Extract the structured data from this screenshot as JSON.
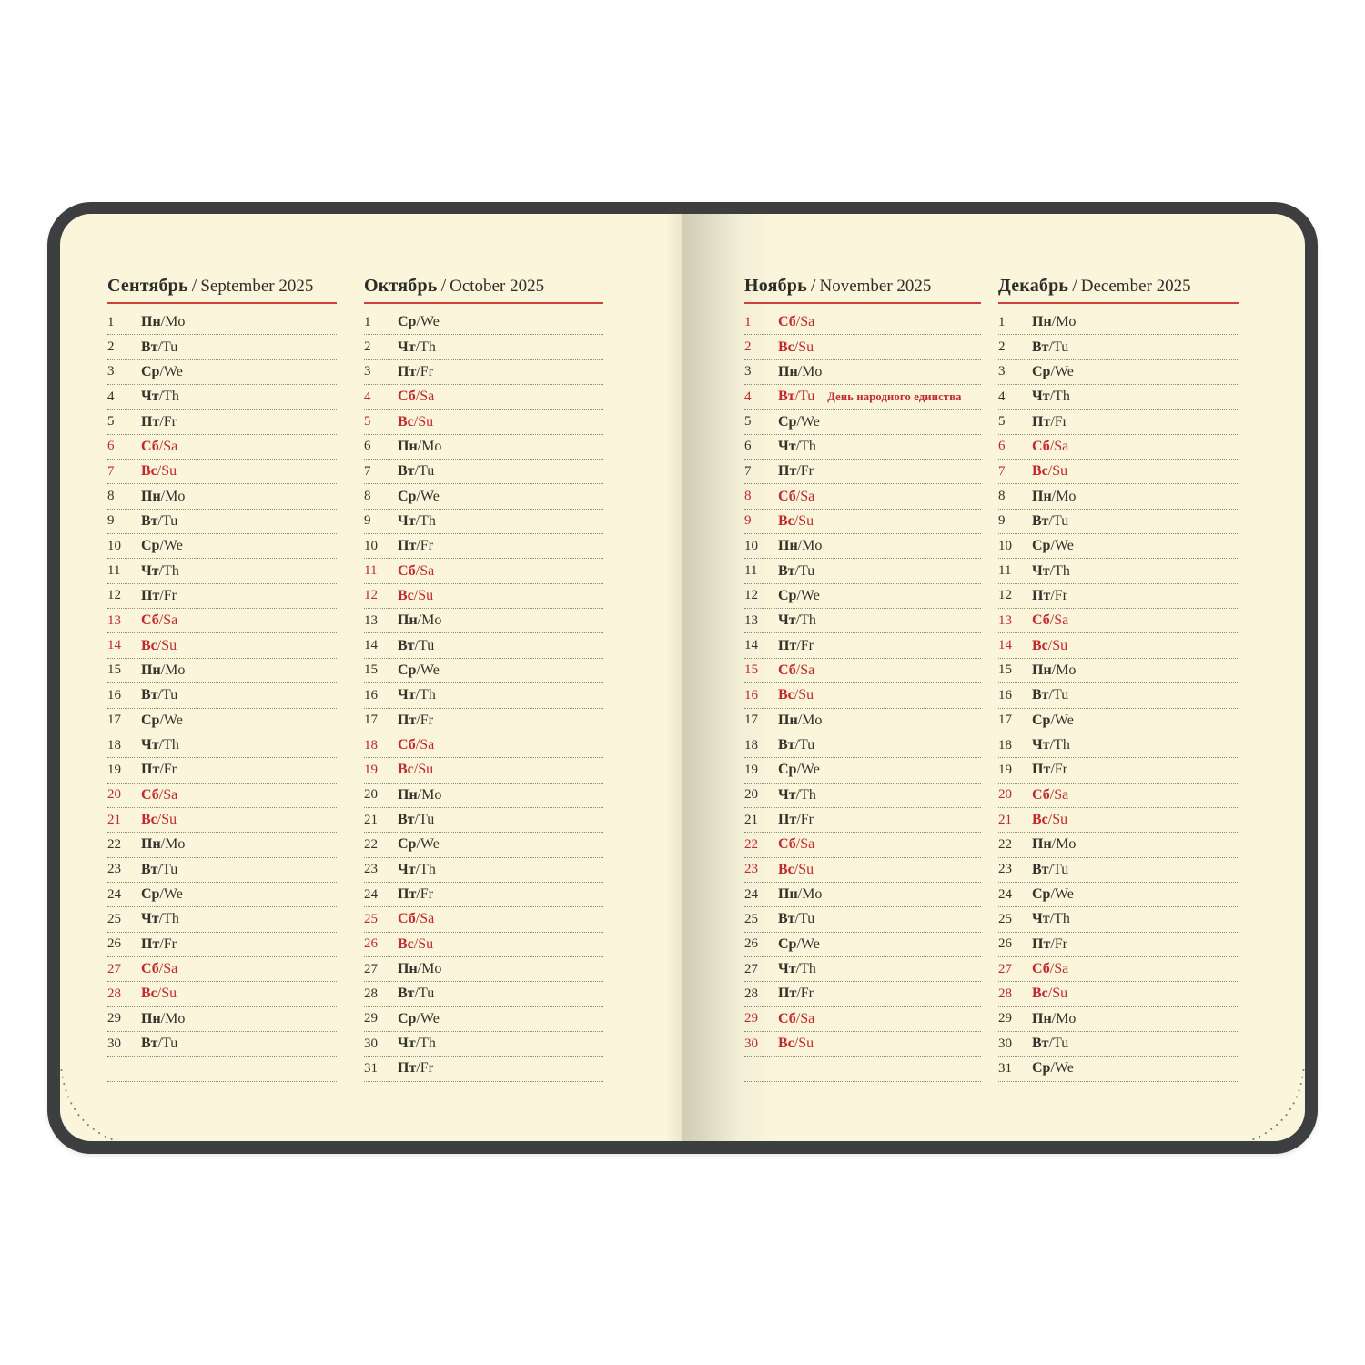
{
  "labels": {
    "separator": "/"
  },
  "colors": {
    "cover": "#3c3e3f",
    "page": "#faf5db",
    "accent_red": "#c2272b",
    "header_rule": "#cf4038",
    "text": "#33312b",
    "dotted_line": "#8f8a72"
  },
  "months": [
    {
      "name": "september",
      "title_ru": "Сентябрь",
      "title_en": "September 2025",
      "days": [
        {
          "d": 1,
          "ru": "Пн",
          "en": "Mo",
          "r": 0
        },
        {
          "d": 2,
          "ru": "Вт",
          "en": "Tu",
          "r": 0
        },
        {
          "d": 3,
          "ru": "Ср",
          "en": "We",
          "r": 0
        },
        {
          "d": 4,
          "ru": "Чт",
          "en": "Th",
          "r": 0
        },
        {
          "d": 5,
          "ru": "Пт",
          "en": "Fr",
          "r": 0
        },
        {
          "d": 6,
          "ru": "Сб",
          "en": "Sa",
          "r": 1
        },
        {
          "d": 7,
          "ru": "Вс",
          "en": "Su",
          "r": 1
        },
        {
          "d": 8,
          "ru": "Пн",
          "en": "Mo",
          "r": 0
        },
        {
          "d": 9,
          "ru": "Вт",
          "en": "Tu",
          "r": 0
        },
        {
          "d": 10,
          "ru": "Ср",
          "en": "We",
          "r": 0
        },
        {
          "d": 11,
          "ru": "Чт",
          "en": "Th",
          "r": 0
        },
        {
          "d": 12,
          "ru": "Пт",
          "en": "Fr",
          "r": 0
        },
        {
          "d": 13,
          "ru": "Сб",
          "en": "Sa",
          "r": 1
        },
        {
          "d": 14,
          "ru": "Вс",
          "en": "Su",
          "r": 1
        },
        {
          "d": 15,
          "ru": "Пн",
          "en": "Mo",
          "r": 0
        },
        {
          "d": 16,
          "ru": "Вт",
          "en": "Tu",
          "r": 0
        },
        {
          "d": 17,
          "ru": "Ср",
          "en": "We",
          "r": 0
        },
        {
          "d": 18,
          "ru": "Чт",
          "en": "Th",
          "r": 0
        },
        {
          "d": 19,
          "ru": "Пт",
          "en": "Fr",
          "r": 0
        },
        {
          "d": 20,
          "ru": "Сб",
          "en": "Sa",
          "r": 1
        },
        {
          "d": 21,
          "ru": "Вс",
          "en": "Su",
          "r": 1
        },
        {
          "d": 22,
          "ru": "Пн",
          "en": "Mo",
          "r": 0
        },
        {
          "d": 23,
          "ru": "Вт",
          "en": "Tu",
          "r": 0
        },
        {
          "d": 24,
          "ru": "Ср",
          "en": "We",
          "r": 0
        },
        {
          "d": 25,
          "ru": "Чт",
          "en": "Th",
          "r": 0
        },
        {
          "d": 26,
          "ru": "Пт",
          "en": "Fr",
          "r": 0
        },
        {
          "d": 27,
          "ru": "Сб",
          "en": "Sa",
          "r": 1
        },
        {
          "d": 28,
          "ru": "Вс",
          "en": "Su",
          "r": 1
        },
        {
          "d": 29,
          "ru": "Пн",
          "en": "Mo",
          "r": 0
        },
        {
          "d": 30,
          "ru": "Вт",
          "en": "Tu",
          "r": 0
        }
      ]
    },
    {
      "name": "october",
      "title_ru": "Октябрь",
      "title_en": "October 2025",
      "days": [
        {
          "d": 1,
          "ru": "Ср",
          "en": "We",
          "r": 0
        },
        {
          "d": 2,
          "ru": "Чт",
          "en": "Th",
          "r": 0
        },
        {
          "d": 3,
          "ru": "Пт",
          "en": "Fr",
          "r": 0
        },
        {
          "d": 4,
          "ru": "Сб",
          "en": "Sa",
          "r": 1
        },
        {
          "d": 5,
          "ru": "Вс",
          "en": "Su",
          "r": 1
        },
        {
          "d": 6,
          "ru": "Пн",
          "en": "Mo",
          "r": 0
        },
        {
          "d": 7,
          "ru": "Вт",
          "en": "Tu",
          "r": 0
        },
        {
          "d": 8,
          "ru": "Ср",
          "en": "We",
          "r": 0
        },
        {
          "d": 9,
          "ru": "Чт",
          "en": "Th",
          "r": 0
        },
        {
          "d": 10,
          "ru": "Пт",
          "en": "Fr",
          "r": 0
        },
        {
          "d": 11,
          "ru": "Сб",
          "en": "Sa",
          "r": 1
        },
        {
          "d": 12,
          "ru": "Вс",
          "en": "Su",
          "r": 1
        },
        {
          "d": 13,
          "ru": "Пн",
          "en": "Mo",
          "r": 0
        },
        {
          "d": 14,
          "ru": "Вт",
          "en": "Tu",
          "r": 0
        },
        {
          "d": 15,
          "ru": "Ср",
          "en": "We",
          "r": 0
        },
        {
          "d": 16,
          "ru": "Чт",
          "en": "Th",
          "r": 0
        },
        {
          "d": 17,
          "ru": "Пт",
          "en": "Fr",
          "r": 0
        },
        {
          "d": 18,
          "ru": "Сб",
          "en": "Sa",
          "r": 1
        },
        {
          "d": 19,
          "ru": "Вс",
          "en": "Su",
          "r": 1
        },
        {
          "d": 20,
          "ru": "Пн",
          "en": "Mo",
          "r": 0
        },
        {
          "d": 21,
          "ru": "Вт",
          "en": "Tu",
          "r": 0
        },
        {
          "d": 22,
          "ru": "Ср",
          "en": "We",
          "r": 0
        },
        {
          "d": 23,
          "ru": "Чт",
          "en": "Th",
          "r": 0
        },
        {
          "d": 24,
          "ru": "Пт",
          "en": "Fr",
          "r": 0
        },
        {
          "d": 25,
          "ru": "Сб",
          "en": "Sa",
          "r": 1
        },
        {
          "d": 26,
          "ru": "Вс",
          "en": "Su",
          "r": 1
        },
        {
          "d": 27,
          "ru": "Пн",
          "en": "Mo",
          "r": 0
        },
        {
          "d": 28,
          "ru": "Вт",
          "en": "Tu",
          "r": 0
        },
        {
          "d": 29,
          "ru": "Ср",
          "en": "We",
          "r": 0
        },
        {
          "d": 30,
          "ru": "Чт",
          "en": "Th",
          "r": 0
        },
        {
          "d": 31,
          "ru": "Пт",
          "en": "Fr",
          "r": 0
        }
      ]
    },
    {
      "name": "november",
      "title_ru": "Ноябрь",
      "title_en": "November 2025",
      "days": [
        {
          "d": 1,
          "ru": "Сб",
          "en": "Sa",
          "r": 1
        },
        {
          "d": 2,
          "ru": "Вс",
          "en": "Su",
          "r": 1
        },
        {
          "d": 3,
          "ru": "Пн",
          "en": "Mo",
          "r": 0
        },
        {
          "d": 4,
          "ru": "Вт",
          "en": "Tu",
          "r": 1,
          "note": "День народного единства"
        },
        {
          "d": 5,
          "ru": "Ср",
          "en": "We",
          "r": 0
        },
        {
          "d": 6,
          "ru": "Чт",
          "en": "Th",
          "r": 0
        },
        {
          "d": 7,
          "ru": "Пт",
          "en": "Fr",
          "r": 0
        },
        {
          "d": 8,
          "ru": "Сб",
          "en": "Sa",
          "r": 1
        },
        {
          "d": 9,
          "ru": "Вс",
          "en": "Su",
          "r": 1
        },
        {
          "d": 10,
          "ru": "Пн",
          "en": "Mo",
          "r": 0
        },
        {
          "d": 11,
          "ru": "Вт",
          "en": "Tu",
          "r": 0
        },
        {
          "d": 12,
          "ru": "Ср",
          "en": "We",
          "r": 0
        },
        {
          "d": 13,
          "ru": "Чт",
          "en": "Th",
          "r": 0
        },
        {
          "d": 14,
          "ru": "Пт",
          "en": "Fr",
          "r": 0
        },
        {
          "d": 15,
          "ru": "Сб",
          "en": "Sa",
          "r": 1
        },
        {
          "d": 16,
          "ru": "Вс",
          "en": "Su",
          "r": 1
        },
        {
          "d": 17,
          "ru": "Пн",
          "en": "Mo",
          "r": 0
        },
        {
          "d": 18,
          "ru": "Вт",
          "en": "Tu",
          "r": 0
        },
        {
          "d": 19,
          "ru": "Ср",
          "en": "We",
          "r": 0
        },
        {
          "d": 20,
          "ru": "Чт",
          "en": "Th",
          "r": 0
        },
        {
          "d": 21,
          "ru": "Пт",
          "en": "Fr",
          "r": 0
        },
        {
          "d": 22,
          "ru": "Сб",
          "en": "Sa",
          "r": 1
        },
        {
          "d": 23,
          "ru": "Вс",
          "en": "Su",
          "r": 1
        },
        {
          "d": 24,
          "ru": "Пн",
          "en": "Mo",
          "r": 0
        },
        {
          "d": 25,
          "ru": "Вт",
          "en": "Tu",
          "r": 0
        },
        {
          "d": 26,
          "ru": "Ср",
          "en": "We",
          "r": 0
        },
        {
          "d": 27,
          "ru": "Чт",
          "en": "Th",
          "r": 0
        },
        {
          "d": 28,
          "ru": "Пт",
          "en": "Fr",
          "r": 0
        },
        {
          "d": 29,
          "ru": "Сб",
          "en": "Sa",
          "r": 1
        },
        {
          "d": 30,
          "ru": "Вс",
          "en": "Su",
          "r": 1
        }
      ]
    },
    {
      "name": "december",
      "title_ru": "Декабрь",
      "title_en": "December 2025",
      "days": [
        {
          "d": 1,
          "ru": "Пн",
          "en": "Mo",
          "r": 0
        },
        {
          "d": 2,
          "ru": "Вт",
          "en": "Tu",
          "r": 0
        },
        {
          "d": 3,
          "ru": "Ср",
          "en": "We",
          "r": 0
        },
        {
          "d": 4,
          "ru": "Чт",
          "en": "Th",
          "r": 0
        },
        {
          "d": 5,
          "ru": "Пт",
          "en": "Fr",
          "r": 0
        },
        {
          "d": 6,
          "ru": "Сб",
          "en": "Sa",
          "r": 1
        },
        {
          "d": 7,
          "ru": "Вс",
          "en": "Su",
          "r": 1
        },
        {
          "d": 8,
          "ru": "Пн",
          "en": "Mo",
          "r": 0
        },
        {
          "d": 9,
          "ru": "Вт",
          "en": "Tu",
          "r": 0
        },
        {
          "d": 10,
          "ru": "Ср",
          "en": "We",
          "r": 0
        },
        {
          "d": 11,
          "ru": "Чт",
          "en": "Th",
          "r": 0
        },
        {
          "d": 12,
          "ru": "Пт",
          "en": "Fr",
          "r": 0
        },
        {
          "d": 13,
          "ru": "Сб",
          "en": "Sa",
          "r": 1
        },
        {
          "d": 14,
          "ru": "Вс",
          "en": "Su",
          "r": 1
        },
        {
          "d": 15,
          "ru": "Пн",
          "en": "Mo",
          "r": 0
        },
        {
          "d": 16,
          "ru": "Вт",
          "en": "Tu",
          "r": 0
        },
        {
          "d": 17,
          "ru": "Ср",
          "en": "We",
          "r": 0
        },
        {
          "d": 18,
          "ru": "Чт",
          "en": "Th",
          "r": 0
        },
        {
          "d": 19,
          "ru": "Пт",
          "en": "Fr",
          "r": 0
        },
        {
          "d": 20,
          "ru": "Сб",
          "en": "Sa",
          "r": 1
        },
        {
          "d": 21,
          "ru": "Вс",
          "en": "Su",
          "r": 1
        },
        {
          "d": 22,
          "ru": "Пн",
          "en": "Mo",
          "r": 0
        },
        {
          "d": 23,
          "ru": "Вт",
          "en": "Tu",
          "r": 0
        },
        {
          "d": 24,
          "ru": "Ср",
          "en": "We",
          "r": 0
        },
        {
          "d": 25,
          "ru": "Чт",
          "en": "Th",
          "r": 0
        },
        {
          "d": 26,
          "ru": "Пт",
          "en": "Fr",
          "r": 0
        },
        {
          "d": 27,
          "ru": "Сб",
          "en": "Sa",
          "r": 1
        },
        {
          "d": 28,
          "ru": "Вс",
          "en": "Su",
          "r": 1
        },
        {
          "d": 29,
          "ru": "Пн",
          "en": "Mo",
          "r": 0
        },
        {
          "d": 30,
          "ru": "Вт",
          "en": "Tu",
          "r": 0
        },
        {
          "d": 31,
          "ru": "Ср",
          "en": "We",
          "r": 0
        }
      ]
    }
  ]
}
